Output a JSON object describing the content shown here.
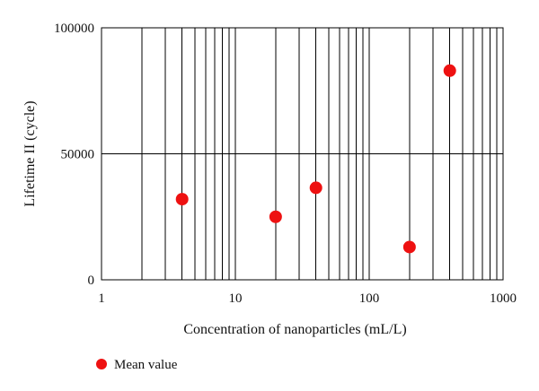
{
  "chart_data": {
    "type": "scatter",
    "x_scale": "log",
    "xlabel": "Concentration of nanoparticles (mL/L)",
    "ylabel": "Lifetime II (cycle)",
    "xlim": [
      1,
      1000
    ],
    "ylim": [
      0,
      100000
    ],
    "x_ticks": [
      1,
      10,
      100,
      1000
    ],
    "x_tick_labels": [
      "1",
      "10",
      "100",
      "1000"
    ],
    "y_ticks": [
      0,
      50000,
      100000
    ],
    "y_tick_labels": [
      "0",
      "50000",
      "100000"
    ],
    "grid": true,
    "legend_position": "bottom-left",
    "series": [
      {
        "name": "Mean value",
        "color": "#ee1111",
        "points": [
          {
            "x": 4,
            "y": 32000
          },
          {
            "x": 20,
            "y": 25000
          },
          {
            "x": 40,
            "y": 36500
          },
          {
            "x": 200,
            "y": 13000
          },
          {
            "x": 400,
            "y": 83000
          }
        ]
      }
    ]
  }
}
